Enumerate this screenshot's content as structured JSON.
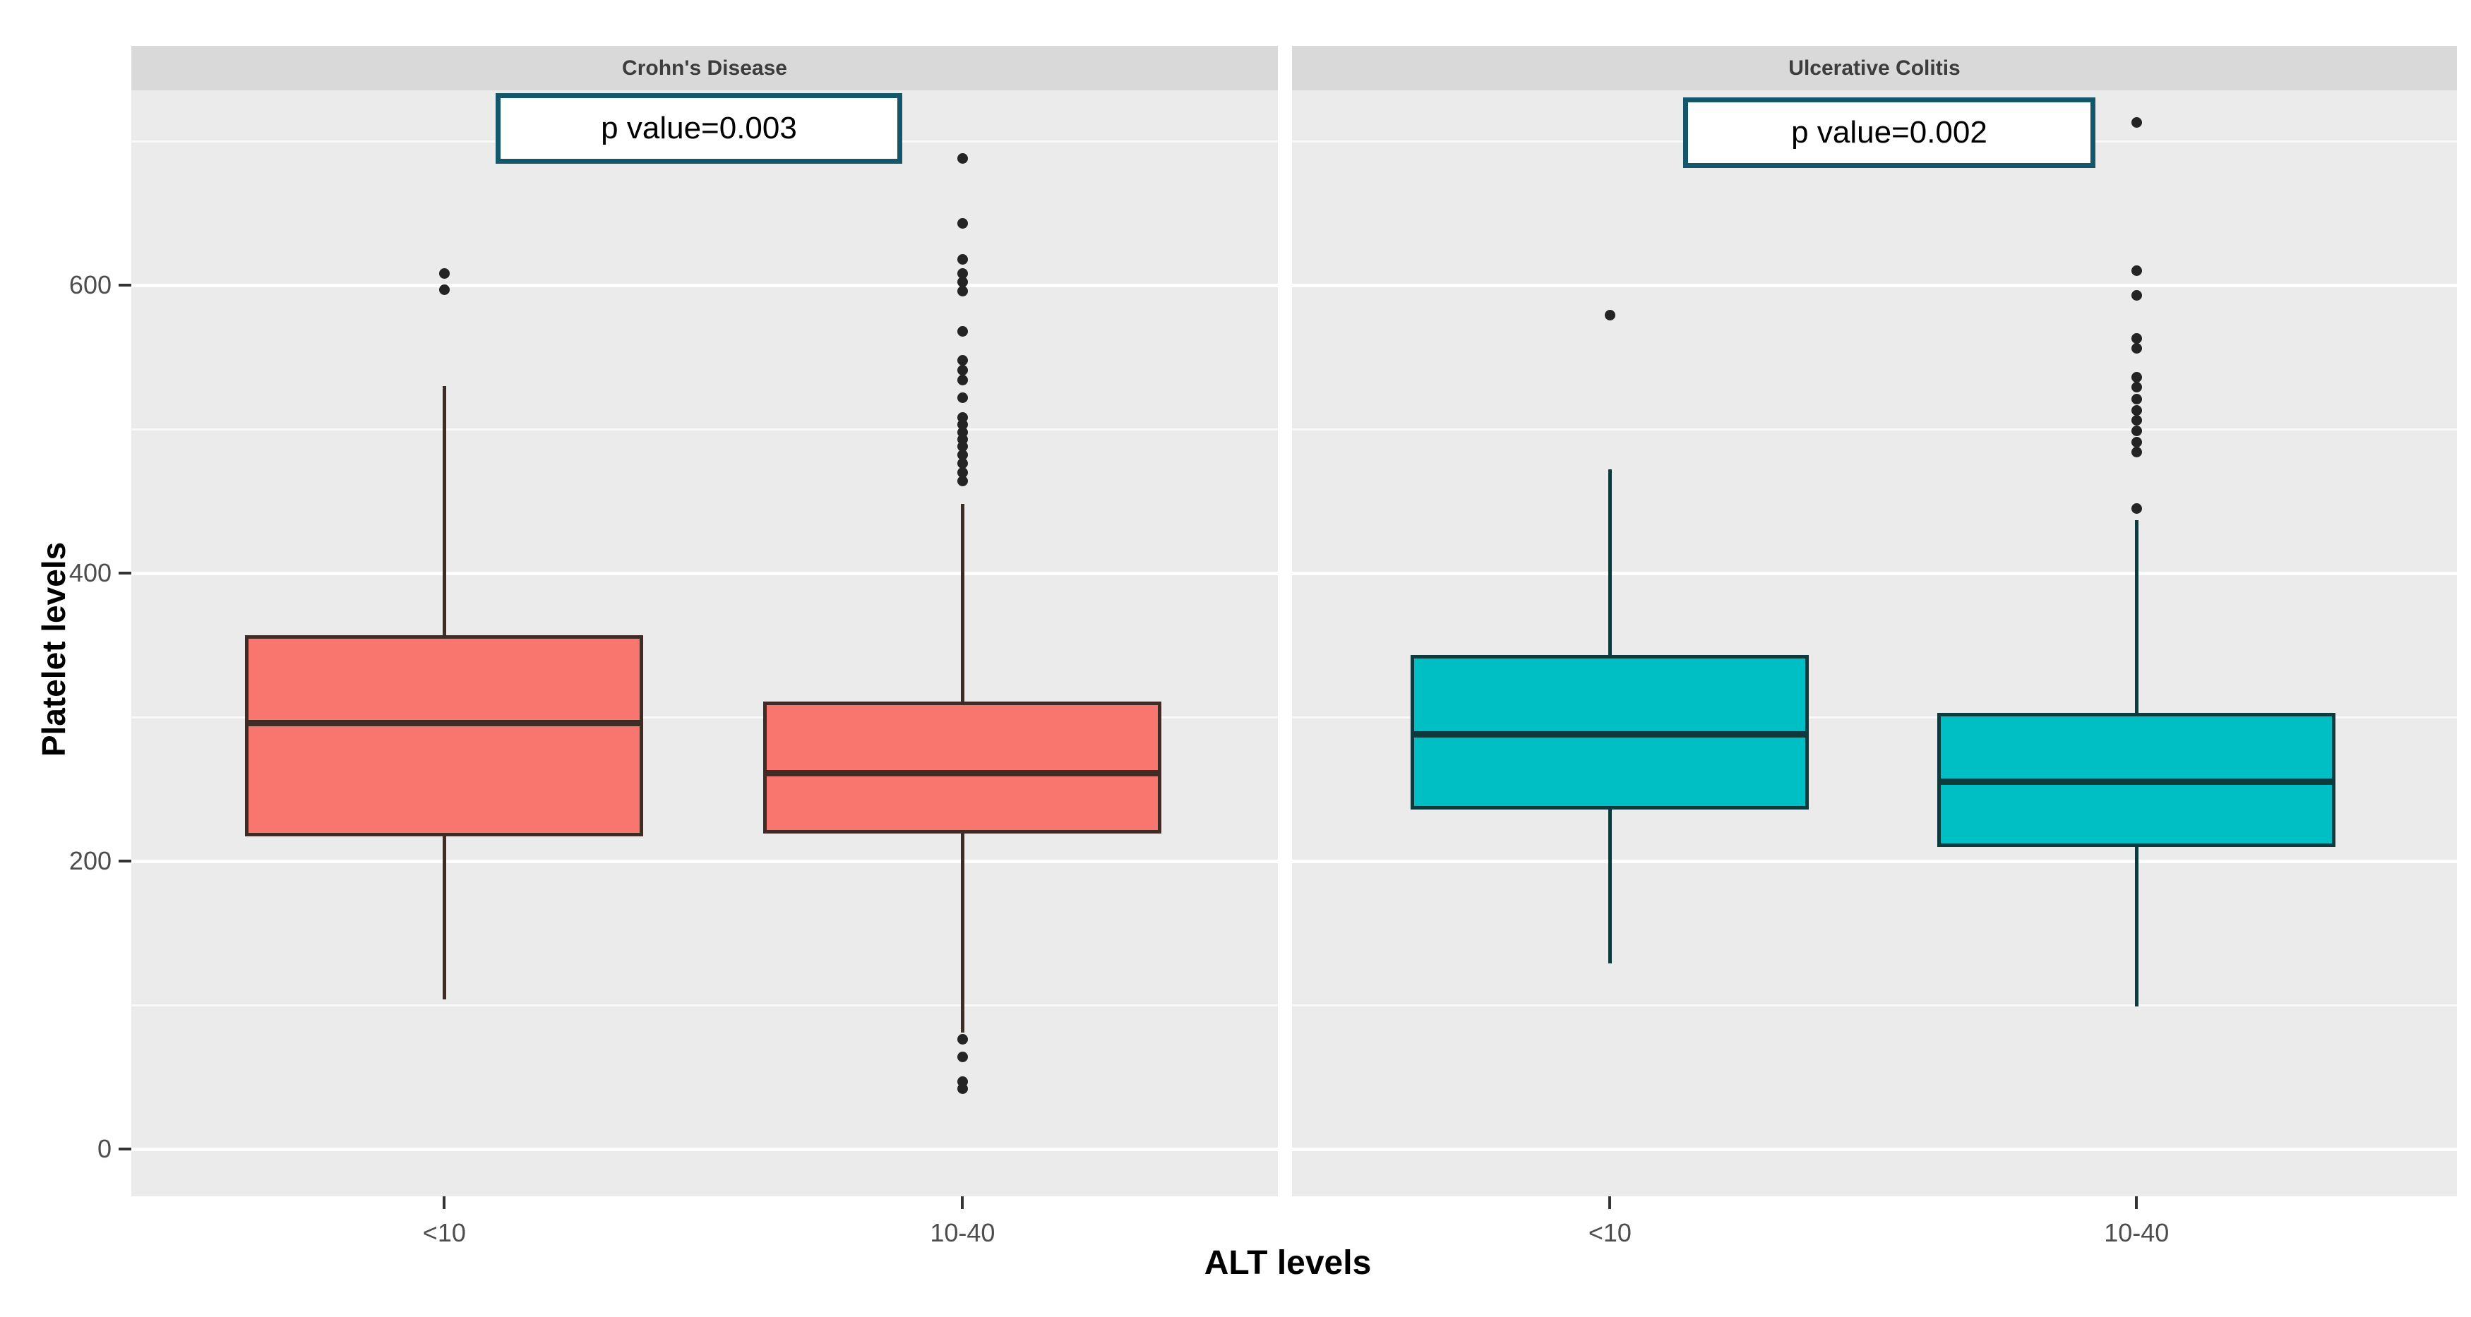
{
  "chart_data": {
    "type": "boxplot",
    "title": "",
    "xlabel": "ALT levels",
    "ylabel": "Platelet levels",
    "categories": [
      "<10",
      "10-40"
    ],
    "y_ticks": [
      0,
      200,
      400,
      600
    ],
    "y_tick_labels": [
      "0",
      "200",
      "400",
      "600"
    ],
    "y_minor_gridlines": [
      100,
      300,
      500,
      700
    ],
    "ylim_panel": [
      -33,
      735
    ],
    "grid": "major-white-minor-faint",
    "legend_position": "none",
    "facets": [
      {
        "label": "Crohn's Disease",
        "annotation": "p value=0.003",
        "fill": "#F8766D",
        "stroke": "#3F2C27",
        "boxes": [
          {
            "category": "<10",
            "whisker_low": 104,
            "q1": 217,
            "median": 296,
            "q3": 357,
            "whisker_high": 530,
            "outliers": [
              597,
              608
            ]
          },
          {
            "category": "10-40",
            "whisker_low": 81,
            "q1": 219,
            "median": 261,
            "q3": 311,
            "whisker_high": 448,
            "outliers": [
              688,
              643,
              618,
              608,
              602,
              596,
              568,
              548,
              541,
              534,
              522,
              508,
              503,
              498,
              493,
              488,
              482,
              476,
              470,
              464,
              76,
              64,
              47,
              42
            ]
          }
        ]
      },
      {
        "label": "Ulcerative Colitis",
        "annotation": "p value=0.002",
        "fill": "#00BFC4",
        "stroke": "#0E3A3D",
        "boxes": [
          {
            "category": "<10",
            "whisker_low": 129,
            "q1": 236,
            "median": 288,
            "q3": 343,
            "whisker_high": 472,
            "outliers": [
              579
            ]
          },
          {
            "category": "10-40",
            "whisker_low": 99,
            "q1": 210,
            "median": 255,
            "q3": 303,
            "whisker_high": 437,
            "outliers": [
              713,
              610,
              593,
              563,
              556,
              536,
              529,
              521,
              513,
              506,
              499,
              491,
              484,
              445
            ]
          }
        ]
      }
    ],
    "colors": {
      "page_background": "#FFFFFF",
      "panel_background": "#EBEBEB",
      "strip_background": "#D9D9D9",
      "strip_text": "#3C3C3C",
      "major_gridline": "#FFFFFF",
      "minor_gridline": "rgba(255,255,255,0.65)",
      "tick_label": "#4D4D4D",
      "tick_mark": "#333333",
      "outlier_dot": "#242424",
      "crohns_fill": "#F8766D",
      "crohns_stroke": "#3F2C27",
      "uc_fill": "#00BFC4",
      "uc_stroke": "#0E3A3D",
      "annotation_border": "#14576B",
      "annotation_background": "#FFFFFF"
    }
  }
}
